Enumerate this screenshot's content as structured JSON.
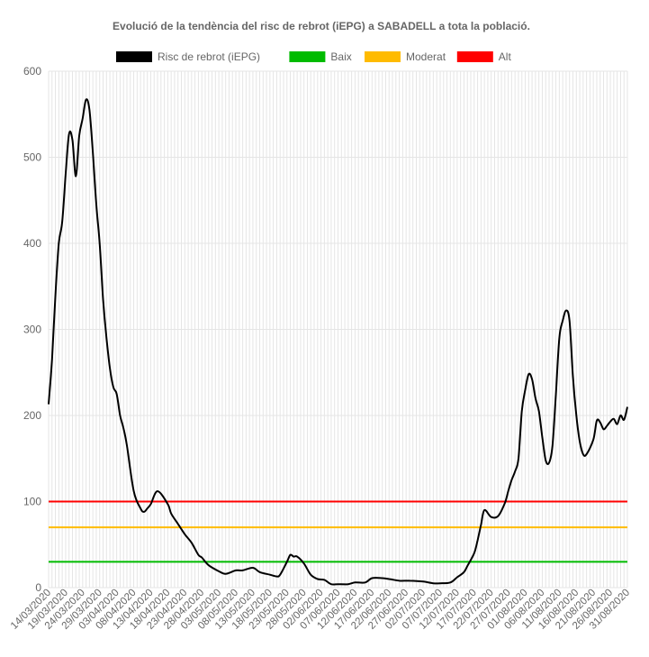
{
  "chart_data": {
    "type": "line",
    "title": "Evolució de la tendència del risc de rebrot (iEPG) a SABADELL a tota la població.",
    "xlabel": "",
    "ylabel": "",
    "ylim": [
      0,
      600
    ],
    "yticks": [
      0,
      100,
      200,
      300,
      400,
      500,
      600
    ],
    "grid": true,
    "legend_position": "top",
    "x_start": "14/03/2020",
    "x_end": "31/08/2020",
    "x_tick_labels": [
      "14/03/2020",
      "19/03/2020",
      "24/03/2020",
      "29/03/2020",
      "03/04/2020",
      "08/04/2020",
      "13/04/2020",
      "18/04/2020",
      "23/04/2020",
      "28/04/2020",
      "03/05/2020",
      "08/05/2020",
      "13/05/2020",
      "18/05/2020",
      "23/05/2020",
      "28/05/2020",
      "02/06/2020",
      "07/06/2020",
      "12/06/2020",
      "17/06/2020",
      "22/06/2020",
      "27/06/2020",
      "02/07/2020",
      "07/07/2020",
      "12/07/2020",
      "17/07/2020",
      "22/07/2020",
      "27/07/2020",
      "01/08/2020",
      "06/08/2020",
      "11/08/2020",
      "16/08/2020",
      "21/08/2020",
      "26/08/2020",
      "31/08/2020"
    ],
    "series": [
      {
        "name": "Risc de rebrot (iEPG)",
        "color": "#000000",
        "x": [
          "14/03/2020",
          "15/03/2020",
          "16/03/2020",
          "17/03/2020",
          "18/03/2020",
          "19/03/2020",
          "20/03/2020",
          "21/03/2020",
          "22/03/2020",
          "23/03/2020",
          "24/03/2020",
          "25/03/2020",
          "26/03/2020",
          "27/03/2020",
          "28/03/2020",
          "29/03/2020",
          "30/03/2020",
          "31/03/2020",
          "01/04/2020",
          "02/04/2020",
          "03/04/2020",
          "04/04/2020",
          "05/04/2020",
          "06/04/2020",
          "08/04/2020",
          "10/04/2020",
          "11/04/2020",
          "12/04/2020",
          "13/04/2020",
          "15/04/2020",
          "18/04/2020",
          "19/04/2020",
          "21/04/2020",
          "23/04/2020",
          "25/04/2020",
          "27/04/2020",
          "28/04/2020",
          "30/04/2020",
          "03/05/2020",
          "05/05/2020",
          "08/05/2020",
          "10/05/2020",
          "13/05/2020",
          "15/05/2020",
          "18/05/2020",
          "20/05/2020",
          "21/05/2020",
          "23/05/2020",
          "24/05/2020",
          "25/05/2020",
          "26/05/2020",
          "28/05/2020",
          "30/05/2020",
          "01/06/2020",
          "03/06/2020",
          "05/06/2020",
          "07/06/2020",
          "10/06/2020",
          "12/06/2020",
          "15/06/2020",
          "17/06/2020",
          "20/06/2020",
          "22/06/2020",
          "25/06/2020",
          "28/06/2020",
          "02/07/2020",
          "05/07/2020",
          "07/07/2020",
          "10/07/2020",
          "12/07/2020",
          "14/07/2020",
          "15/07/2020",
          "17/07/2020",
          "18/07/2020",
          "19/07/2020",
          "20/07/2020",
          "22/07/2020",
          "24/07/2020",
          "26/07/2020",
          "27/07/2020",
          "28/07/2020",
          "29/07/2020",
          "30/07/2020",
          "31/07/2020",
          "01/08/2020",
          "02/08/2020",
          "03/08/2020",
          "04/08/2020",
          "05/08/2020",
          "06/08/2020",
          "07/08/2020",
          "08/08/2020",
          "09/08/2020",
          "10/08/2020",
          "11/08/2020",
          "12/08/2020",
          "13/08/2020",
          "14/08/2020",
          "15/08/2020",
          "16/08/2020",
          "17/08/2020",
          "18/08/2020",
          "19/08/2020",
          "21/08/2020",
          "22/08/2020",
          "23/08/2020",
          "24/08/2020",
          "25/08/2020",
          "26/08/2020",
          "27/08/2020",
          "28/08/2020",
          "29/08/2020",
          "30/08/2020",
          "31/08/2020"
        ],
        "values": [
          213,
          265,
          340,
          400,
          425,
          480,
          527,
          520,
          478,
          525,
          545,
          567,
          555,
          505,
          445,
          400,
          335,
          290,
          255,
          233,
          225,
          200,
          185,
          165,
          112,
          92,
          88,
          92,
          97,
          112,
          97,
          86,
          74,
          62,
          52,
          38,
          35,
          26,
          19,
          16,
          20,
          20,
          23,
          18,
          15,
          13,
          15,
          30,
          38,
          36,
          36,
          28,
          15,
          10,
          9,
          4,
          4,
          4,
          6,
          6,
          11,
          11,
          10,
          8,
          8,
          7,
          5,
          5,
          6,
          12,
          18,
          25,
          40,
          55,
          73,
          90,
          82,
          83,
          98,
          112,
          125,
          135,
          150,
          205,
          230,
          248,
          242,
          220,
          205,
          175,
          148,
          145,
          165,
          225,
          290,
          310,
          322,
          310,
          245,
          200,
          170,
          155,
          155,
          172,
          194,
          192,
          184,
          188,
          193,
          196,
          190,
          200,
          195,
          210
        ]
      },
      {
        "name": "Baix",
        "color": "#00bb00",
        "constant": 30
      },
      {
        "name": "Moderat",
        "color": "#ffbb00",
        "constant": 70
      },
      {
        "name": "Alt",
        "color": "#ff0000",
        "constant": 100
      }
    ]
  }
}
